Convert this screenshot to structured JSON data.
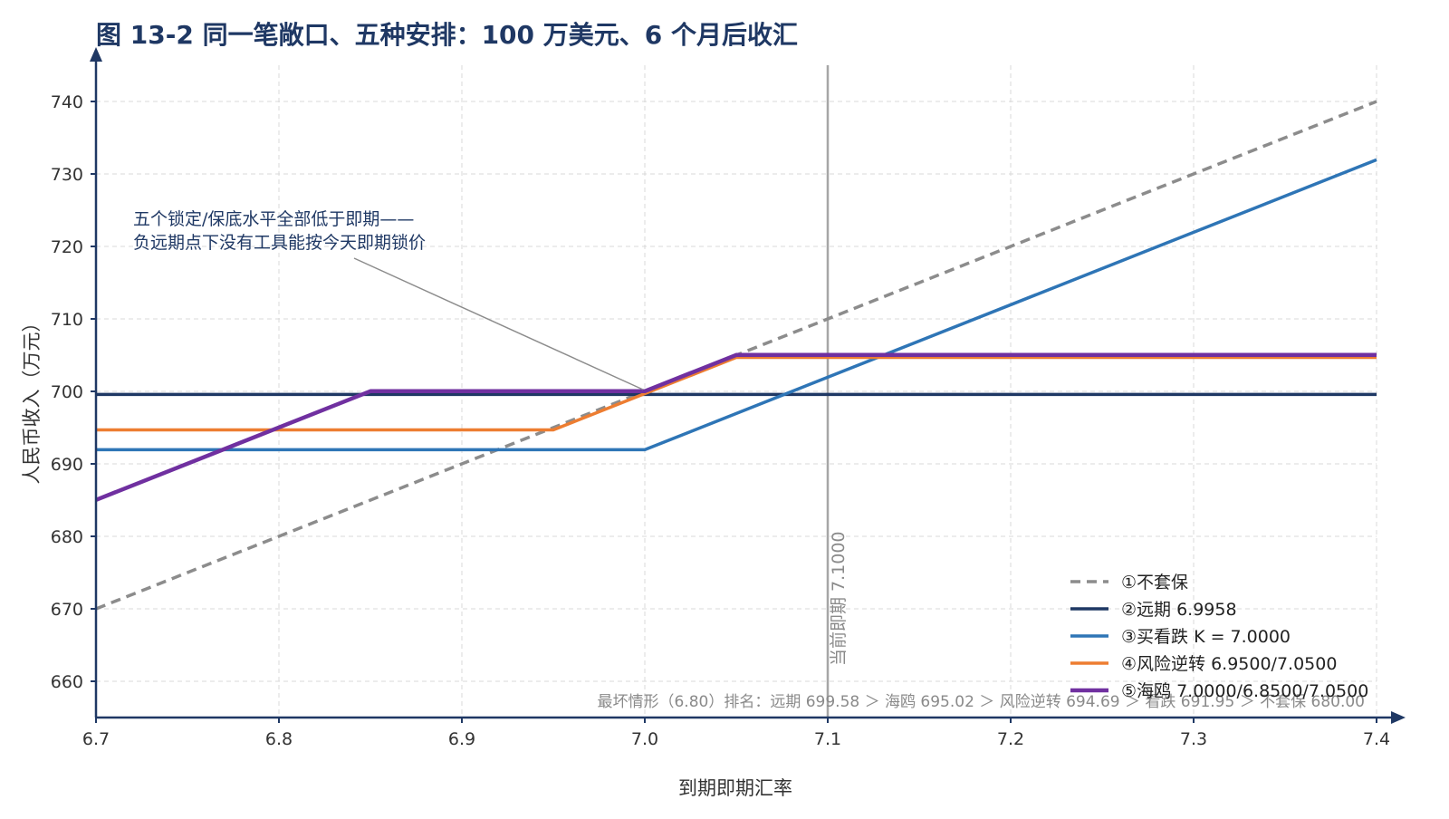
{
  "chart_data": {
    "type": "line",
    "title": "图 13-2 同一笔敞口、五种安排：100 万美元、6 个月后收汇",
    "xlabel": "到期即期汇率",
    "ylabel": "人民币收入（万元）",
    "xlim": [
      6.7,
      7.4
    ],
    "ylim": [
      655,
      745
    ],
    "x_ticks": [
      6.7,
      6.8,
      6.9,
      7.0,
      7.1,
      7.2,
      7.3,
      7.4
    ],
    "x_tick_labels": [
      "6.7",
      "6.8",
      "6.9",
      "7.0",
      "7.1",
      "7.2",
      "7.3",
      "7.4"
    ],
    "y_ticks": [
      660,
      670,
      680,
      690,
      700,
      710,
      720,
      730,
      740
    ],
    "y_tick_labels": [
      "660",
      "670",
      "680",
      "690",
      "700",
      "710",
      "720",
      "730",
      "740"
    ],
    "grid": true,
    "legend_position": "bottom-right",
    "series": [
      {
        "name": "①不套保",
        "color": "#8c8c8c",
        "dash": true,
        "x": [
          6.7,
          7.4
        ],
        "y": [
          670,
          740
        ]
      },
      {
        "name": "②远期 6.9958",
        "color": "#1f3864",
        "dash": false,
        "x": [
          6.7,
          7.4
        ],
        "y": [
          699.58,
          699.58
        ]
      },
      {
        "name": "③买看跌 K = 7.0000",
        "color": "#2e75b6",
        "dash": false,
        "x": [
          6.7,
          7.0,
          7.4
        ],
        "y": [
          691.95,
          691.95,
          731.95
        ]
      },
      {
        "name": "④风险逆转 6.9500/7.0500",
        "color": "#ed7d31",
        "dash": false,
        "x": [
          6.7,
          6.95,
          7.05,
          7.4
        ],
        "y": [
          694.69,
          694.69,
          704.69,
          704.69
        ]
      },
      {
        "name": "⑤海鸥 7.0000/6.8500/7.0500",
        "color": "#7030a0",
        "dash": false,
        "x": [
          6.7,
          6.85,
          7.0,
          7.05,
          7.4
        ],
        "y": [
          685.02,
          700.02,
          700.02,
          705.02,
          705.02
        ]
      }
    ],
    "reference_line": {
      "x": 7.1,
      "label": "当前即期 7.1000",
      "color": "#a6a6a6"
    },
    "annotation": {
      "lines": [
        "五个锁定/保底水平全部低于即期——",
        "负远期点下没有工具能按今天即期锁价"
      ],
      "target": [
        7.0,
        700
      ]
    },
    "footnote": "最坏情形（6.80）排名：远期 699.58 ＞ 海鸥 695.02 ＞ 风险逆转 694.69 ＞ 看跌 691.95 ＞ 不套保 680.00"
  }
}
